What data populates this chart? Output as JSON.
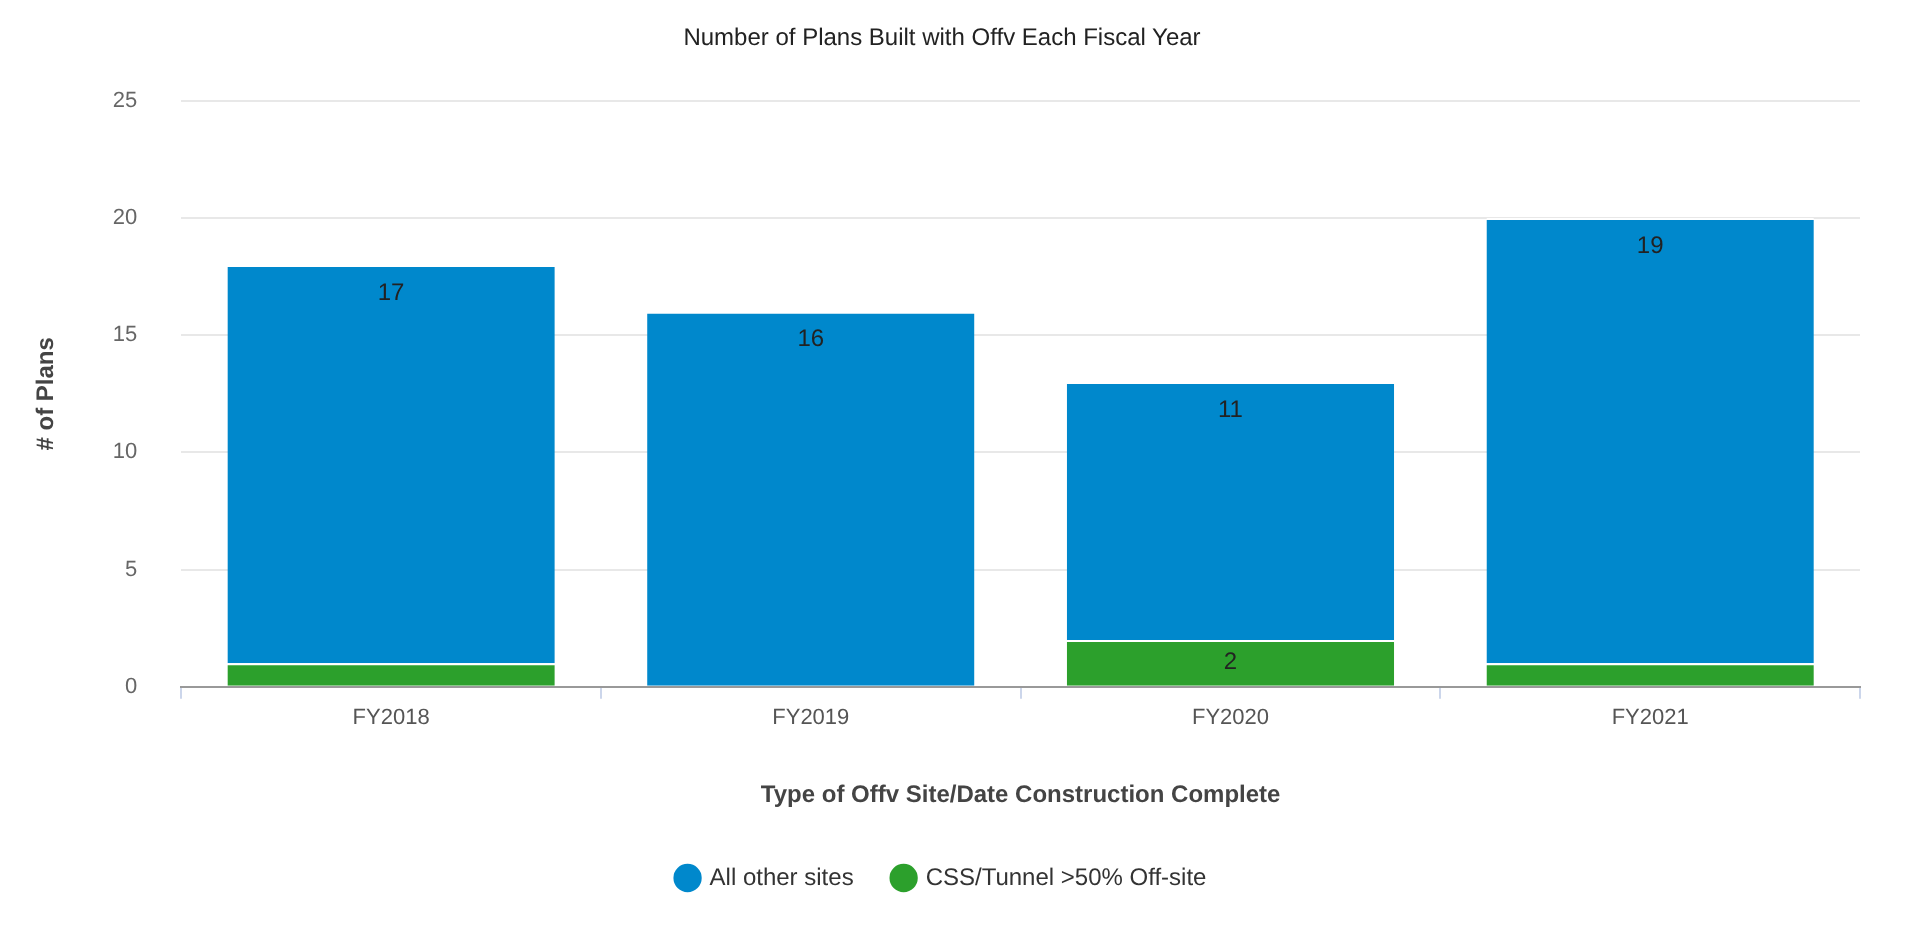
{
  "chart_data": {
    "type": "bar",
    "title": "Number of Plans Built with Offv Each Fiscal Year",
    "xlabel": "Type of Offv Site/Date Construction Complete",
    "ylabel": "# of Plans",
    "categories": [
      "FY2018",
      "FY2019",
      "FY2020",
      "FY2021"
    ],
    "stacked": true,
    "series": [
      {
        "name": "CSS/Tunnel >50% Off-site",
        "color": "#2ca02c",
        "values": [
          1,
          0,
          2,
          1
        ],
        "value_labels": [
          null,
          null,
          "2",
          null
        ]
      },
      {
        "name": "All other sites",
        "color": "#0088cc",
        "values": [
          17,
          16,
          11,
          19
        ],
        "value_labels": [
          "17",
          "16",
          "11",
          "19"
        ]
      }
    ],
    "ylim": [
      0,
      25
    ],
    "yticks": [
      0,
      5,
      10,
      15,
      20,
      25
    ],
    "grid": "y",
    "legend": "bottom"
  }
}
